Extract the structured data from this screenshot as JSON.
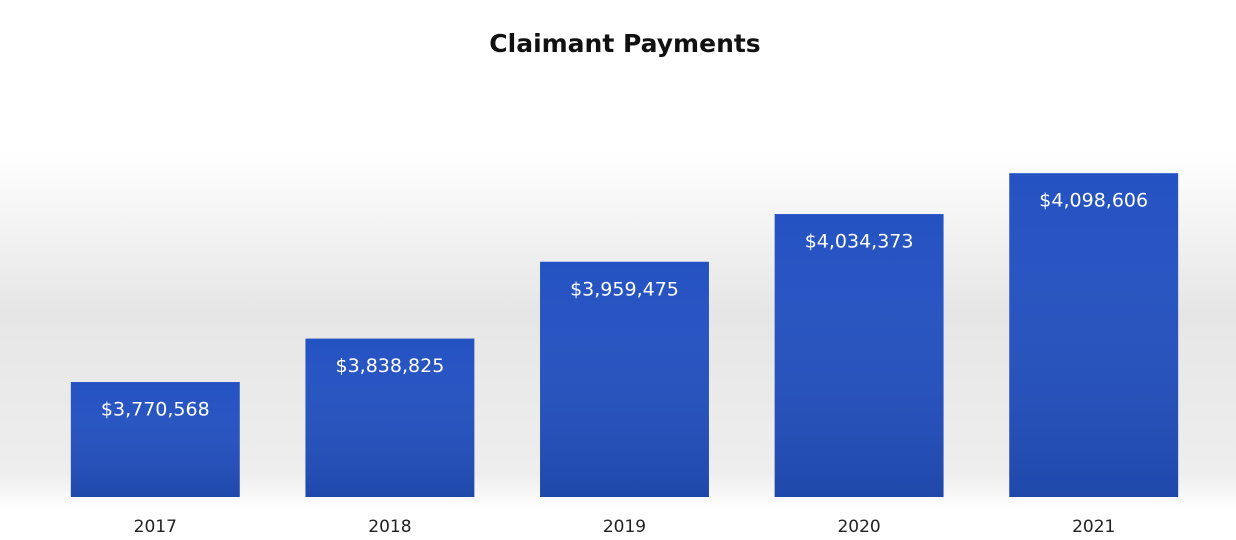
{
  "chart_data": {
    "type": "bar",
    "title": "Claimant Payments",
    "categories": [
      "2017",
      "2018",
      "2019",
      "2020",
      "2021"
    ],
    "values": [
      3770568,
      3838825,
      3959475,
      4034373,
      4098606
    ],
    "value_labels": [
      "$3,770,568",
      "$3,838,825",
      "$3,959,475",
      "$4,034,373",
      "$4,098,606"
    ],
    "color": "#2452c2",
    "ylim": [
      3590000,
      4135000
    ]
  }
}
